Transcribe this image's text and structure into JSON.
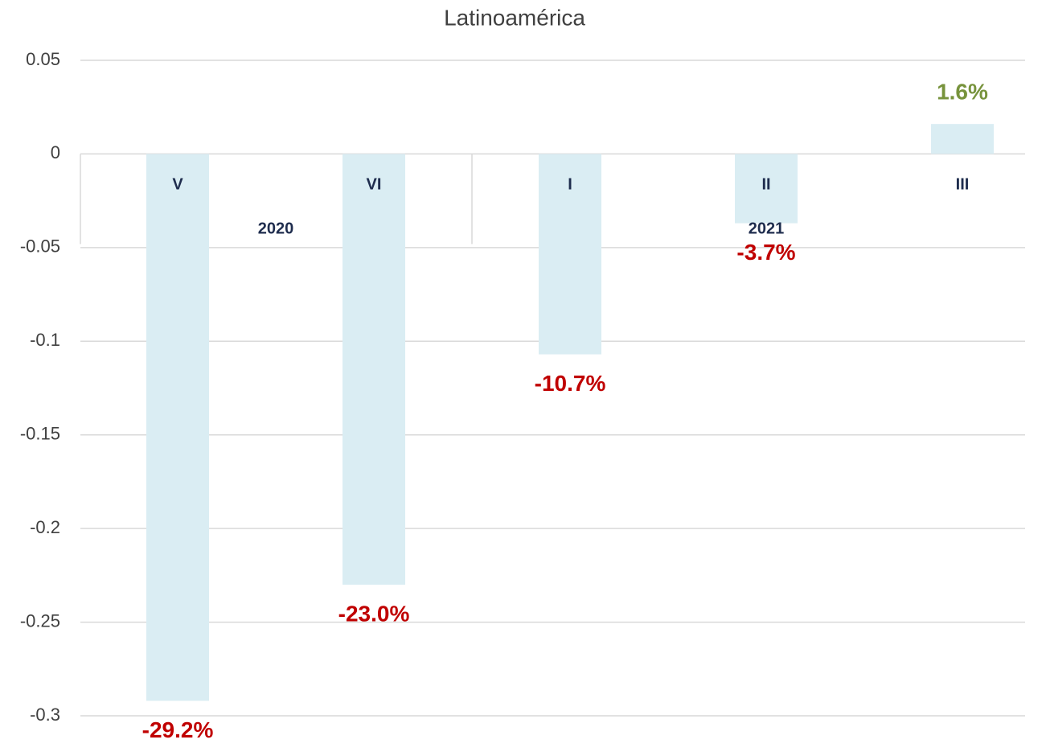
{
  "chart_data": {
    "type": "bar",
    "title": "Latinoamérica",
    "categories": [
      "V",
      "VI",
      "I",
      "II",
      "III"
    ],
    "groups": [
      {
        "name": "2020",
        "count": 2
      },
      {
        "name": "2021",
        "count": 3
      }
    ],
    "values": [
      -0.292,
      -0.23,
      -0.107,
      -0.037,
      0.016
    ],
    "value_labels": [
      "-29.2%",
      "-23.0%",
      "-10.7%",
      "-3.7%",
      "1.6%"
    ],
    "color": "#daedf3",
    "label_colors": {
      "negative": "#c00000",
      "positive": "#77933c"
    },
    "ylim": [
      -0.3,
      0.05
    ],
    "yticks": [
      0.05,
      0,
      -0.05,
      -0.1,
      -0.15,
      -0.2,
      -0.25,
      -0.3
    ],
    "grid": true
  }
}
